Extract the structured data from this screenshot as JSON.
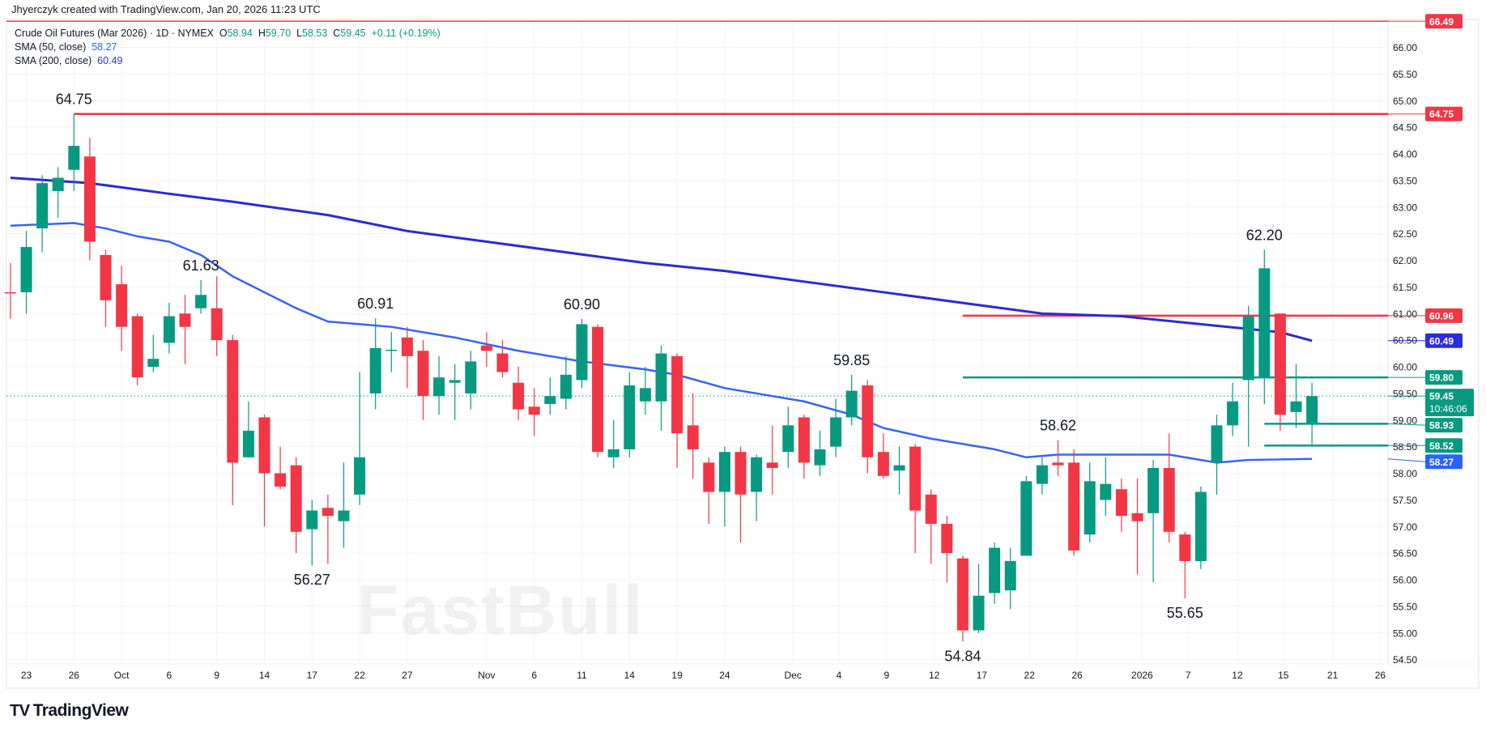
{
  "attribution": "Jhyerczyk created with TradingView.com, Jan 20, 2026 11:23 UTC",
  "legend": {
    "symbol": "Crude Oil Futures (Mar 2026) · 1D · NYMEX",
    "o_label": "O",
    "o": "58.94",
    "h_label": "H",
    "h": "59.70",
    "l_label": "L",
    "l": "58.53",
    "c_label": "C",
    "c": "59.45",
    "change": "+0.11 (+0.19%)",
    "sma50_label": "SMA (50, close)",
    "sma50": "58.27",
    "sma200_label": "SMA (200, close)",
    "sma200": "60.49"
  },
  "logo": {
    "mark": "TV",
    "text": "TradingView"
  },
  "watermark": "FastBull",
  "colors": {
    "up": "#089981",
    "down": "#f23645",
    "sma50": "#3a63f0",
    "sma200": "#2b2bcf",
    "grid": "#f0f3fa"
  },
  "chart_data": {
    "type": "candlestick",
    "title": "Crude Oil Futures (Mar 2026) · 1D · NYMEX",
    "ylim": [
      54.3,
      66.7
    ],
    "y_ticks": [
      "66.00",
      "65.50",
      "65.00",
      "64.50",
      "64.00",
      "63.50",
      "63.00",
      "62.50",
      "62.00",
      "61.50",
      "61.00",
      "60.50",
      "60.00",
      "59.50",
      "59.00",
      "58.50",
      "58.00",
      "57.50",
      "57.00",
      "56.50",
      "56.00",
      "55.50",
      "55.00",
      "54.50"
    ],
    "x_ticks": [
      {
        "i": 1,
        "label": "23"
      },
      {
        "i": 4,
        "label": "26"
      },
      {
        "i": 7,
        "label": "Oct"
      },
      {
        "i": 10,
        "label": "6"
      },
      {
        "i": 13,
        "label": "9"
      },
      {
        "i": 16,
        "label": "14"
      },
      {
        "i": 19,
        "label": "17"
      },
      {
        "i": 22,
        "label": "22"
      },
      {
        "i": 25,
        "label": "27"
      },
      {
        "i": 30,
        "label": "Nov"
      },
      {
        "i": 33,
        "label": "6"
      },
      {
        "i": 36,
        "label": "11"
      },
      {
        "i": 39,
        "label": "14"
      },
      {
        "i": 42,
        "label": "19"
      },
      {
        "i": 45,
        "label": "24"
      },
      {
        "i": 49.3,
        "label": "Dec"
      },
      {
        "i": 52.2,
        "label": "4"
      },
      {
        "i": 55.2,
        "label": "9"
      },
      {
        "i": 58.2,
        "label": "12"
      },
      {
        "i": 61.2,
        "label": "17"
      },
      {
        "i": 64.2,
        "label": "22"
      },
      {
        "i": 67.2,
        "label": "26"
      },
      {
        "i": 71.3,
        "label": "2026"
      },
      {
        "i": 74.2,
        "label": "7"
      },
      {
        "i": 77.3,
        "label": "12"
      },
      {
        "i": 80.2,
        "label": "15"
      },
      {
        "i": 83.3,
        "label": "21"
      },
      {
        "i": 86.3,
        "label": "26"
      }
    ],
    "candles": [
      [
        61.4,
        61.95,
        60.9,
        61.38
      ],
      [
        61.4,
        62.55,
        61.0,
        62.25
      ],
      [
        62.6,
        63.6,
        62.15,
        63.45
      ],
      [
        63.3,
        63.75,
        62.8,
        63.55
      ],
      [
        63.7,
        64.75,
        63.3,
        64.15
      ],
      [
        63.95,
        64.3,
        62.0,
        62.35
      ],
      [
        62.1,
        62.2,
        60.75,
        61.25
      ],
      [
        61.55,
        61.9,
        60.3,
        60.75
      ],
      [
        60.95,
        61.0,
        59.65,
        59.8
      ],
      [
        60.0,
        60.6,
        59.9,
        60.15
      ],
      [
        60.45,
        61.2,
        60.25,
        60.95
      ],
      [
        61.0,
        61.35,
        60.05,
        60.75
      ],
      [
        61.1,
        61.63,
        61.0,
        61.35
      ],
      [
        61.1,
        61.7,
        60.2,
        60.5
      ],
      [
        60.5,
        60.6,
        57.4,
        58.2
      ],
      [
        58.3,
        59.35,
        58.3,
        58.8
      ],
      [
        59.05,
        59.1,
        57.0,
        58.0
      ],
      [
        58.0,
        58.5,
        57.7,
        57.75
      ],
      [
        58.15,
        58.3,
        56.5,
        56.9
      ],
      [
        56.95,
        57.5,
        56.27,
        57.3
      ],
      [
        57.35,
        57.6,
        56.3,
        57.2
      ],
      [
        57.1,
        58.2,
        56.6,
        57.3
      ],
      [
        57.6,
        59.9,
        57.4,
        58.3
      ],
      [
        59.5,
        60.91,
        59.2,
        60.35
      ],
      [
        60.3,
        60.65,
        59.9,
        60.32
      ],
      [
        60.55,
        60.75,
        59.6,
        60.2
      ],
      [
        60.3,
        60.5,
        59.0,
        59.45
      ],
      [
        59.45,
        60.2,
        59.1,
        59.8
      ],
      [
        59.7,
        60.05,
        59.0,
        59.75
      ],
      [
        59.5,
        60.3,
        59.2,
        60.1
      ],
      [
        60.4,
        60.65,
        60.0,
        60.3
      ],
      [
        60.25,
        60.5,
        59.8,
        59.9
      ],
      [
        59.7,
        60.0,
        59.0,
        59.2
      ],
      [
        59.25,
        59.6,
        58.7,
        59.1
      ],
      [
        59.3,
        59.8,
        59.1,
        59.45
      ],
      [
        59.4,
        60.2,
        59.2,
        59.85
      ],
      [
        59.75,
        60.9,
        59.6,
        60.8
      ],
      [
        60.75,
        60.8,
        58.3,
        58.4
      ],
      [
        58.3,
        59.0,
        58.1,
        58.45
      ],
      [
        58.45,
        59.9,
        58.3,
        59.65
      ],
      [
        59.35,
        60.0,
        59.1,
        59.6
      ],
      [
        59.35,
        60.4,
        58.8,
        60.25
      ],
      [
        60.2,
        60.25,
        58.1,
        58.75
      ],
      [
        58.9,
        59.5,
        57.9,
        58.45
      ],
      [
        58.2,
        58.3,
        57.05,
        57.65
      ],
      [
        57.65,
        58.5,
        57.0,
        58.4
      ],
      [
        58.4,
        58.5,
        56.7,
        57.6
      ],
      [
        57.65,
        58.35,
        57.1,
        58.3
      ],
      [
        58.2,
        58.9,
        57.6,
        58.1
      ],
      [
        58.4,
        59.25,
        58.1,
        58.9
      ],
      [
        59.05,
        59.1,
        57.9,
        58.2
      ],
      [
        58.15,
        58.8,
        57.95,
        58.45
      ],
      [
        58.5,
        59.4,
        58.3,
        59.05
      ],
      [
        59.05,
        59.85,
        58.9,
        59.55
      ],
      [
        59.65,
        59.75,
        58.0,
        58.3
      ],
      [
        58.4,
        58.75,
        57.9,
        57.95
      ],
      [
        58.05,
        58.5,
        57.6,
        58.15
      ],
      [
        58.5,
        58.55,
        56.5,
        57.3
      ],
      [
        57.6,
        57.7,
        56.3,
        57.05
      ],
      [
        57.05,
        57.2,
        55.95,
        56.5
      ],
      [
        56.4,
        56.45,
        54.84,
        55.05
      ],
      [
        55.05,
        56.3,
        55.0,
        55.7
      ],
      [
        55.75,
        56.7,
        55.55,
        56.6
      ],
      [
        55.8,
        56.6,
        55.45,
        56.35
      ],
      [
        56.45,
        57.95,
        56.45,
        57.85
      ],
      [
        57.8,
        58.3,
        57.6,
        58.15
      ],
      [
        58.2,
        58.62,
        57.95,
        58.15
      ],
      [
        58.2,
        58.45,
        56.45,
        56.55
      ],
      [
        56.85,
        58.2,
        56.7,
        57.85
      ],
      [
        57.5,
        58.3,
        57.2,
        57.8
      ],
      [
        57.7,
        57.9,
        56.9,
        57.2
      ],
      [
        57.25,
        57.9,
        56.1,
        57.1
      ],
      [
        57.25,
        58.25,
        55.95,
        58.1
      ],
      [
        58.1,
        58.75,
        56.7,
        56.9
      ],
      [
        56.85,
        56.9,
        55.65,
        56.35
      ],
      [
        56.35,
        57.75,
        56.2,
        57.65
      ],
      [
        58.2,
        59.1,
        57.6,
        58.9
      ],
      [
        58.9,
        59.7,
        58.7,
        59.35
      ],
      [
        59.75,
        61.15,
        58.5,
        60.95
      ],
      [
        59.8,
        62.2,
        59.3,
        61.85
      ],
      [
        61.0,
        61.0,
        58.8,
        59.1
      ],
      [
        59.15,
        60.05,
        58.85,
        59.35
      ],
      [
        58.94,
        59.7,
        58.53,
        59.45
      ]
    ],
    "sma50": [
      [
        0,
        62.65
      ],
      [
        4,
        62.7
      ],
      [
        6,
        62.6
      ],
      [
        8,
        62.45
      ],
      [
        10,
        62.35
      ],
      [
        12,
        62.1
      ],
      [
        14,
        61.7
      ],
      [
        16,
        61.4
      ],
      [
        18,
        61.1
      ],
      [
        20,
        60.85
      ],
      [
        22,
        60.8
      ],
      [
        24,
        60.75
      ],
      [
        28,
        60.55
      ],
      [
        32,
        60.3
      ],
      [
        36,
        60.1
      ],
      [
        40,
        59.95
      ],
      [
        42,
        59.85
      ],
      [
        45,
        59.6
      ],
      [
        50,
        59.35
      ],
      [
        53,
        59.1
      ],
      [
        55,
        58.85
      ],
      [
        58,
        58.65
      ],
      [
        62,
        58.45
      ],
      [
        64,
        58.3
      ],
      [
        66,
        58.35
      ],
      [
        70,
        58.35
      ],
      [
        73,
        58.35
      ],
      [
        76,
        58.2
      ],
      [
        78,
        58.25
      ],
      [
        82,
        58.27
      ]
    ],
    "sma200": [
      [
        0,
        63.55
      ],
      [
        5,
        63.45
      ],
      [
        10,
        63.25
      ],
      [
        14,
        63.1
      ],
      [
        20,
        62.85
      ],
      [
        25,
        62.55
      ],
      [
        30,
        62.35
      ],
      [
        35,
        62.15
      ],
      [
        40,
        61.95
      ],
      [
        45,
        61.8
      ],
      [
        50,
        61.6
      ],
      [
        55,
        61.4
      ],
      [
        60,
        61.2
      ],
      [
        65,
        61.0
      ],
      [
        70,
        60.95
      ],
      [
        75,
        60.8
      ],
      [
        80,
        60.65
      ],
      [
        82,
        60.49
      ]
    ],
    "hlines": [
      {
        "price": 66.49,
        "from": -1,
        "color": "#f23645"
      },
      {
        "price": 64.75,
        "from": 4,
        "color": "#f23645"
      },
      {
        "price": 60.96,
        "from": 60,
        "color": "#f23645"
      },
      {
        "price": 59.8,
        "from": 60,
        "color": "#089981"
      },
      {
        "price": 58.93,
        "from": 79,
        "color": "#089981"
      },
      {
        "price": 58.52,
        "from": 79,
        "color": "#089981"
      }
    ],
    "annotations": [
      {
        "i": 4,
        "price": 64.75,
        "label": "64.75",
        "pos": "above"
      },
      {
        "i": 12,
        "price": 61.63,
        "label": "61.63",
        "pos": "above"
      },
      {
        "i": 19,
        "price": 56.27,
        "label": "56.27",
        "pos": "below"
      },
      {
        "i": 23,
        "price": 60.91,
        "label": "60.91",
        "pos": "above"
      },
      {
        "i": 36,
        "price": 60.9,
        "label": "60.90",
        "pos": "above"
      },
      {
        "i": 53,
        "price": 59.85,
        "label": "59.85",
        "pos": "above"
      },
      {
        "i": 60,
        "price": 54.84,
        "label": "54.84",
        "pos": "below"
      },
      {
        "i": 66,
        "price": 58.62,
        "label": "58.62",
        "pos": "above"
      },
      {
        "i": 74,
        "price": 55.65,
        "label": "55.65",
        "pos": "below"
      },
      {
        "i": 79,
        "price": 62.2,
        "label": "62.20",
        "pos": "above"
      }
    ],
    "price_labels": [
      {
        "price": 66.49,
        "label": "66.49",
        "color": "#f23645"
      },
      {
        "price": 64.75,
        "label": "64.75",
        "color": "#f23645"
      },
      {
        "price": 60.96,
        "label": "60.96",
        "color": "#f23645"
      },
      {
        "price": 60.49,
        "label": "60.49",
        "color": "#2b2bdf"
      },
      {
        "price": 59.8,
        "label": "59.80",
        "color": "#089981"
      },
      {
        "price": 59.45,
        "label": "59.45",
        "sub": "10:46:06",
        "color": "#089981"
      },
      {
        "price": 58.93,
        "label": "58.93",
        "color": "#089981"
      },
      {
        "price": 58.52,
        "label": "58.52",
        "color": "#089981"
      },
      {
        "price": 58.27,
        "label": "58.27",
        "color": "#2962ff"
      }
    ],
    "last_price": 59.45
  }
}
